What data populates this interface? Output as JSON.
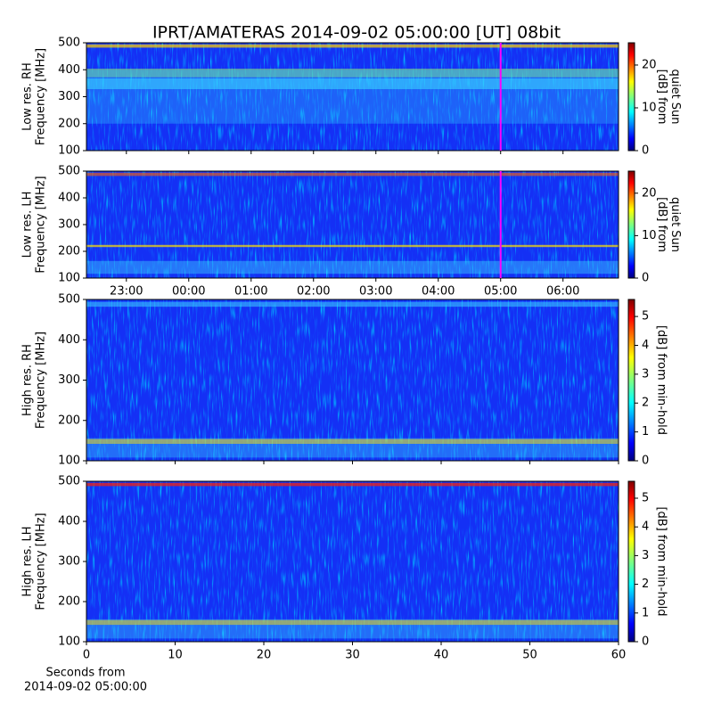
{
  "chart_data": [
    {
      "type": "heatmap",
      "title": "IPRT/AMATERAS 2014-09-02 05:00:00 [UT]   08bit",
      "ylabel": [
        "Low res. RH",
        "Frequency [MHz]"
      ],
      "ylim": [
        100,
        500
      ],
      "yticks": [
        100,
        200,
        300,
        400,
        500
      ],
      "xlim": [
        22.36,
        30.89
      ],
      "marker_x": 29,
      "marker_color": "#ff00ff",
      "colorbar": {
        "label": [
          "[dB] from",
          "quiet Sun"
        ],
        "lim": [
          0,
          25.2
        ],
        "ticks": [
          0,
          10,
          20
        ]
      }
    },
    {
      "type": "heatmap",
      "ylabel": [
        "Low res. LH",
        "Frequency [MHz]"
      ],
      "ylim": [
        100,
        500
      ],
      "yticks": [
        100,
        200,
        300,
        400,
        500
      ],
      "xlim": [
        22.36,
        30.89
      ],
      "marker_x": 29,
      "marker_color": "#ff00ff",
      "xticks": [
        {
          "value": 23,
          "label": "23:00"
        },
        {
          "value": 24,
          "label": "00:00"
        },
        {
          "value": 25,
          "label": "01:00"
        },
        {
          "value": 26,
          "label": "02:00"
        },
        {
          "value": 27,
          "label": "03:00"
        },
        {
          "value": 28,
          "label": "04:00"
        },
        {
          "value": 29,
          "label": "05:00"
        },
        {
          "value": 30,
          "label": "06:00"
        }
      ],
      "colorbar": {
        "label": [
          "[dB] from",
          "quiet Sun"
        ],
        "lim": [
          0,
          25.2
        ],
        "ticks": [
          0,
          10,
          20
        ]
      }
    },
    {
      "type": "heatmap",
      "ylabel": [
        "High res. RH",
        "Frequency [MHz]"
      ],
      "ylim": [
        100,
        500
      ],
      "yticks": [
        100,
        200,
        300,
        400,
        500
      ],
      "xlim": [
        0,
        60
      ],
      "colorbar": {
        "label": [
          "[dB] from min-hold"
        ],
        "lim": [
          0,
          5.59
        ],
        "ticks": [
          0,
          1,
          2,
          3,
          4,
          5
        ]
      }
    },
    {
      "type": "heatmap",
      "ylabel": [
        "High res. LH",
        "Frequency [MHz]"
      ],
      "ylim": [
        100,
        500
      ],
      "yticks": [
        100,
        200,
        300,
        400,
        500
      ],
      "xlim": [
        0,
        60
      ],
      "xticks": [
        0,
        10,
        20,
        30,
        40,
        50,
        60
      ],
      "xlabel": [
        "Seconds from",
        "2014-09-02 05:00:00"
      ],
      "colorbar": {
        "label": [
          "[dB] from min-hold"
        ],
        "lim": [
          0,
          5.59
        ],
        "ticks": [
          0,
          1,
          2,
          3,
          4,
          5
        ]
      }
    }
  ]
}
